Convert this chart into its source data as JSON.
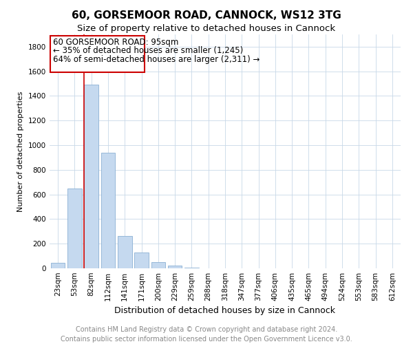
{
  "title": "60, GORSEMOOR ROAD, CANNOCK, WS12 3TG",
  "subtitle": "Size of property relative to detached houses in Cannock",
  "xlabel": "Distribution of detached houses by size in Cannock",
  "ylabel": "Number of detached properties",
  "bar_color": "#c5d9ef",
  "bar_edge_color": "#8ab0d4",
  "annotation_box_color": "#cc0000",
  "annotation_line_color": "#cc0000",
  "annotation_text_line1": "60 GORSEMOOR ROAD: 95sqm",
  "annotation_text_line2": "← 35% of detached houses are smaller (1,245)",
  "annotation_text_line3": "64% of semi-detached houses are larger (2,311) →",
  "categories": [
    "23sqm",
    "53sqm",
    "82sqm",
    "112sqm",
    "141sqm",
    "171sqm",
    "200sqm",
    "229sqm",
    "259sqm",
    "288sqm",
    "318sqm",
    "347sqm",
    "377sqm",
    "406sqm",
    "435sqm",
    "465sqm",
    "494sqm",
    "524sqm",
    "553sqm",
    "583sqm",
    "612sqm"
  ],
  "values": [
    45,
    650,
    1490,
    940,
    265,
    130,
    50,
    20,
    5,
    2,
    2,
    2,
    2,
    2,
    0,
    0,
    0,
    0,
    0,
    0,
    0
  ],
  "ylim": [
    0,
    1900
  ],
  "yticks": [
    0,
    200,
    400,
    600,
    800,
    1000,
    1200,
    1400,
    1600,
    1800
  ],
  "red_line_bar_index": 2,
  "background_color": "#ffffff",
  "grid_color": "#c8d8e8",
  "footer_text": "Contains HM Land Registry data © Crown copyright and database right 2024.\nContains public sector information licensed under the Open Government Licence v3.0.",
  "title_fontsize": 11,
  "subtitle_fontsize": 9.5,
  "annotation_fontsize": 8.5,
  "xlabel_fontsize": 9,
  "ylabel_fontsize": 8,
  "footer_fontsize": 7,
  "tick_fontsize": 7.5
}
